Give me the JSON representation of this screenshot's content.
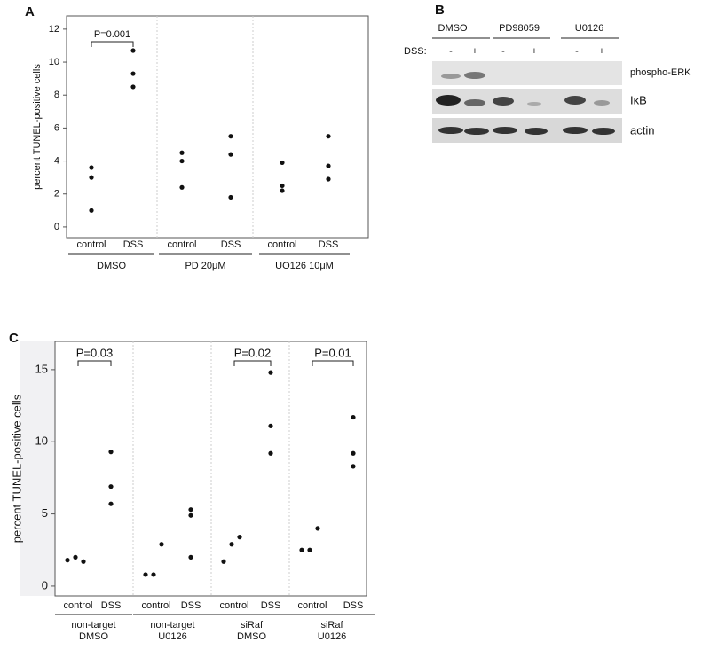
{
  "chart_data": [
    {
      "type": "dot",
      "panel": "A",
      "ylabel": "percent TUNEL-positive cells",
      "categories": [
        "control",
        "DSS",
        "control",
        "DSS",
        "control",
        "DSS"
      ],
      "groups": [
        [
          "DMSO"
        ],
        [
          "PD 20μM"
        ],
        [
          "UO126 10μM"
        ]
      ],
      "values": [
        [
          1.0,
          3.0,
          3.6
        ],
        [
          8.5,
          9.3,
          10.7
        ],
        [
          2.4,
          4.0,
          4.5
        ],
        [
          1.8,
          4.4,
          5.5
        ],
        [
          2.2,
          2.5,
          3.9
        ],
        [
          2.9,
          3.7,
          5.5
        ]
      ],
      "color": "#111111",
      "ylim": [
        -0.65,
        12.8
      ],
      "yticks": [
        0,
        2,
        4,
        6,
        8,
        10,
        12
      ],
      "annotations": [
        {
          "text": "P=0.001",
          "group": 0
        }
      ]
    },
    {
      "type": "dot",
      "panel": "C",
      "ylabel": "percent TUNEL-positive cells",
      "categories": [
        "control",
        "DSS",
        "control",
        "DSS",
        "control",
        "DSS",
        "control",
        "DSS"
      ],
      "groups": [
        [
          "non-target",
          "DMSO"
        ],
        [
          "non-target",
          "U0126"
        ],
        [
          "siRaf",
          "DMSO"
        ],
        [
          "siRaf",
          "U0126"
        ]
      ],
      "values": [
        [
          1.8,
          2.0,
          1.7
        ],
        [
          5.7,
          6.9,
          9.3
        ],
        [
          0.8,
          0.8,
          2.9
        ],
        [
          2.0,
          4.9,
          5.3
        ],
        [
          1.7,
          2.9,
          3.4
        ],
        [
          9.2,
          11.1,
          14.8
        ],
        [
          2.5,
          2.5,
          4.0
        ],
        [
          8.3,
          9.2,
          11.7
        ]
      ],
      "color": "#111111",
      "ylim": [
        -0.68,
        16.96
      ],
      "yticks": [
        0,
        5,
        10,
        15
      ],
      "annotations": [
        {
          "text": "P=0.03",
          "group": 0
        },
        {
          "text": "P=0.02",
          "group": 2
        },
        {
          "text": "P=0.01",
          "group": 3
        }
      ]
    }
  ],
  "blot": {
    "panel": "B",
    "lane_groups": [
      "DMSO",
      "PD98059",
      "U0126"
    ],
    "row_label": "DSS:",
    "lanes": [
      "-",
      "+",
      "-",
      "+",
      "-",
      "+"
    ],
    "bands": [
      "phospho-ERK",
      "IκB",
      "actin"
    ]
  }
}
